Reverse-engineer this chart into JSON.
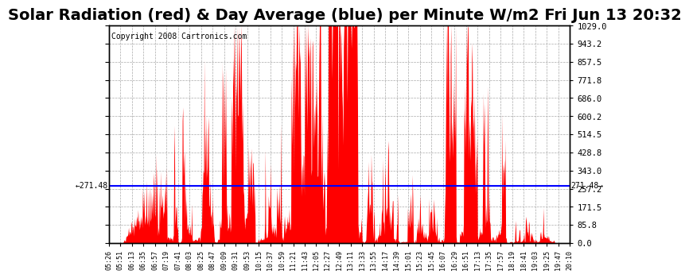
{
  "title": "Solar Radiation (red) & Day Average (blue) per Minute W/m2 Fri Jun 13 20:32",
  "copyright": "Copyright 2008 Cartronics.com",
  "avg_value": 271.48,
  "y_max": 1029.0,
  "y_min": 0.0,
  "y_ticks": [
    0.0,
    85.8,
    171.5,
    257.2,
    343.0,
    428.8,
    514.5,
    600.2,
    686.0,
    771.8,
    857.5,
    943.2,
    1029.0
  ],
  "background_color": "#ffffff",
  "fill_color": "#ff0000",
  "avg_line_color": "#0000ff",
  "grid_color": "#aaaaaa",
  "title_fontsize": 14,
  "copyright_fontsize": 7,
  "x_tick_labels": [
    "05:26",
    "05:51",
    "06:13",
    "06:35",
    "06:57",
    "07:19",
    "07:41",
    "08:03",
    "08:25",
    "08:47",
    "09:09",
    "09:31",
    "09:53",
    "10:15",
    "10:37",
    "10:59",
    "11:21",
    "11:43",
    "12:05",
    "12:27",
    "12:49",
    "13:11",
    "13:33",
    "13:55",
    "14:17",
    "14:39",
    "15:01",
    "15:23",
    "15:45",
    "16:07",
    "16:29",
    "16:51",
    "17:13",
    "17:35",
    "17:57",
    "18:19",
    "18:41",
    "19:03",
    "19:25",
    "19:47",
    "20:10"
  ],
  "num_points": 885,
  "seed": 12345
}
